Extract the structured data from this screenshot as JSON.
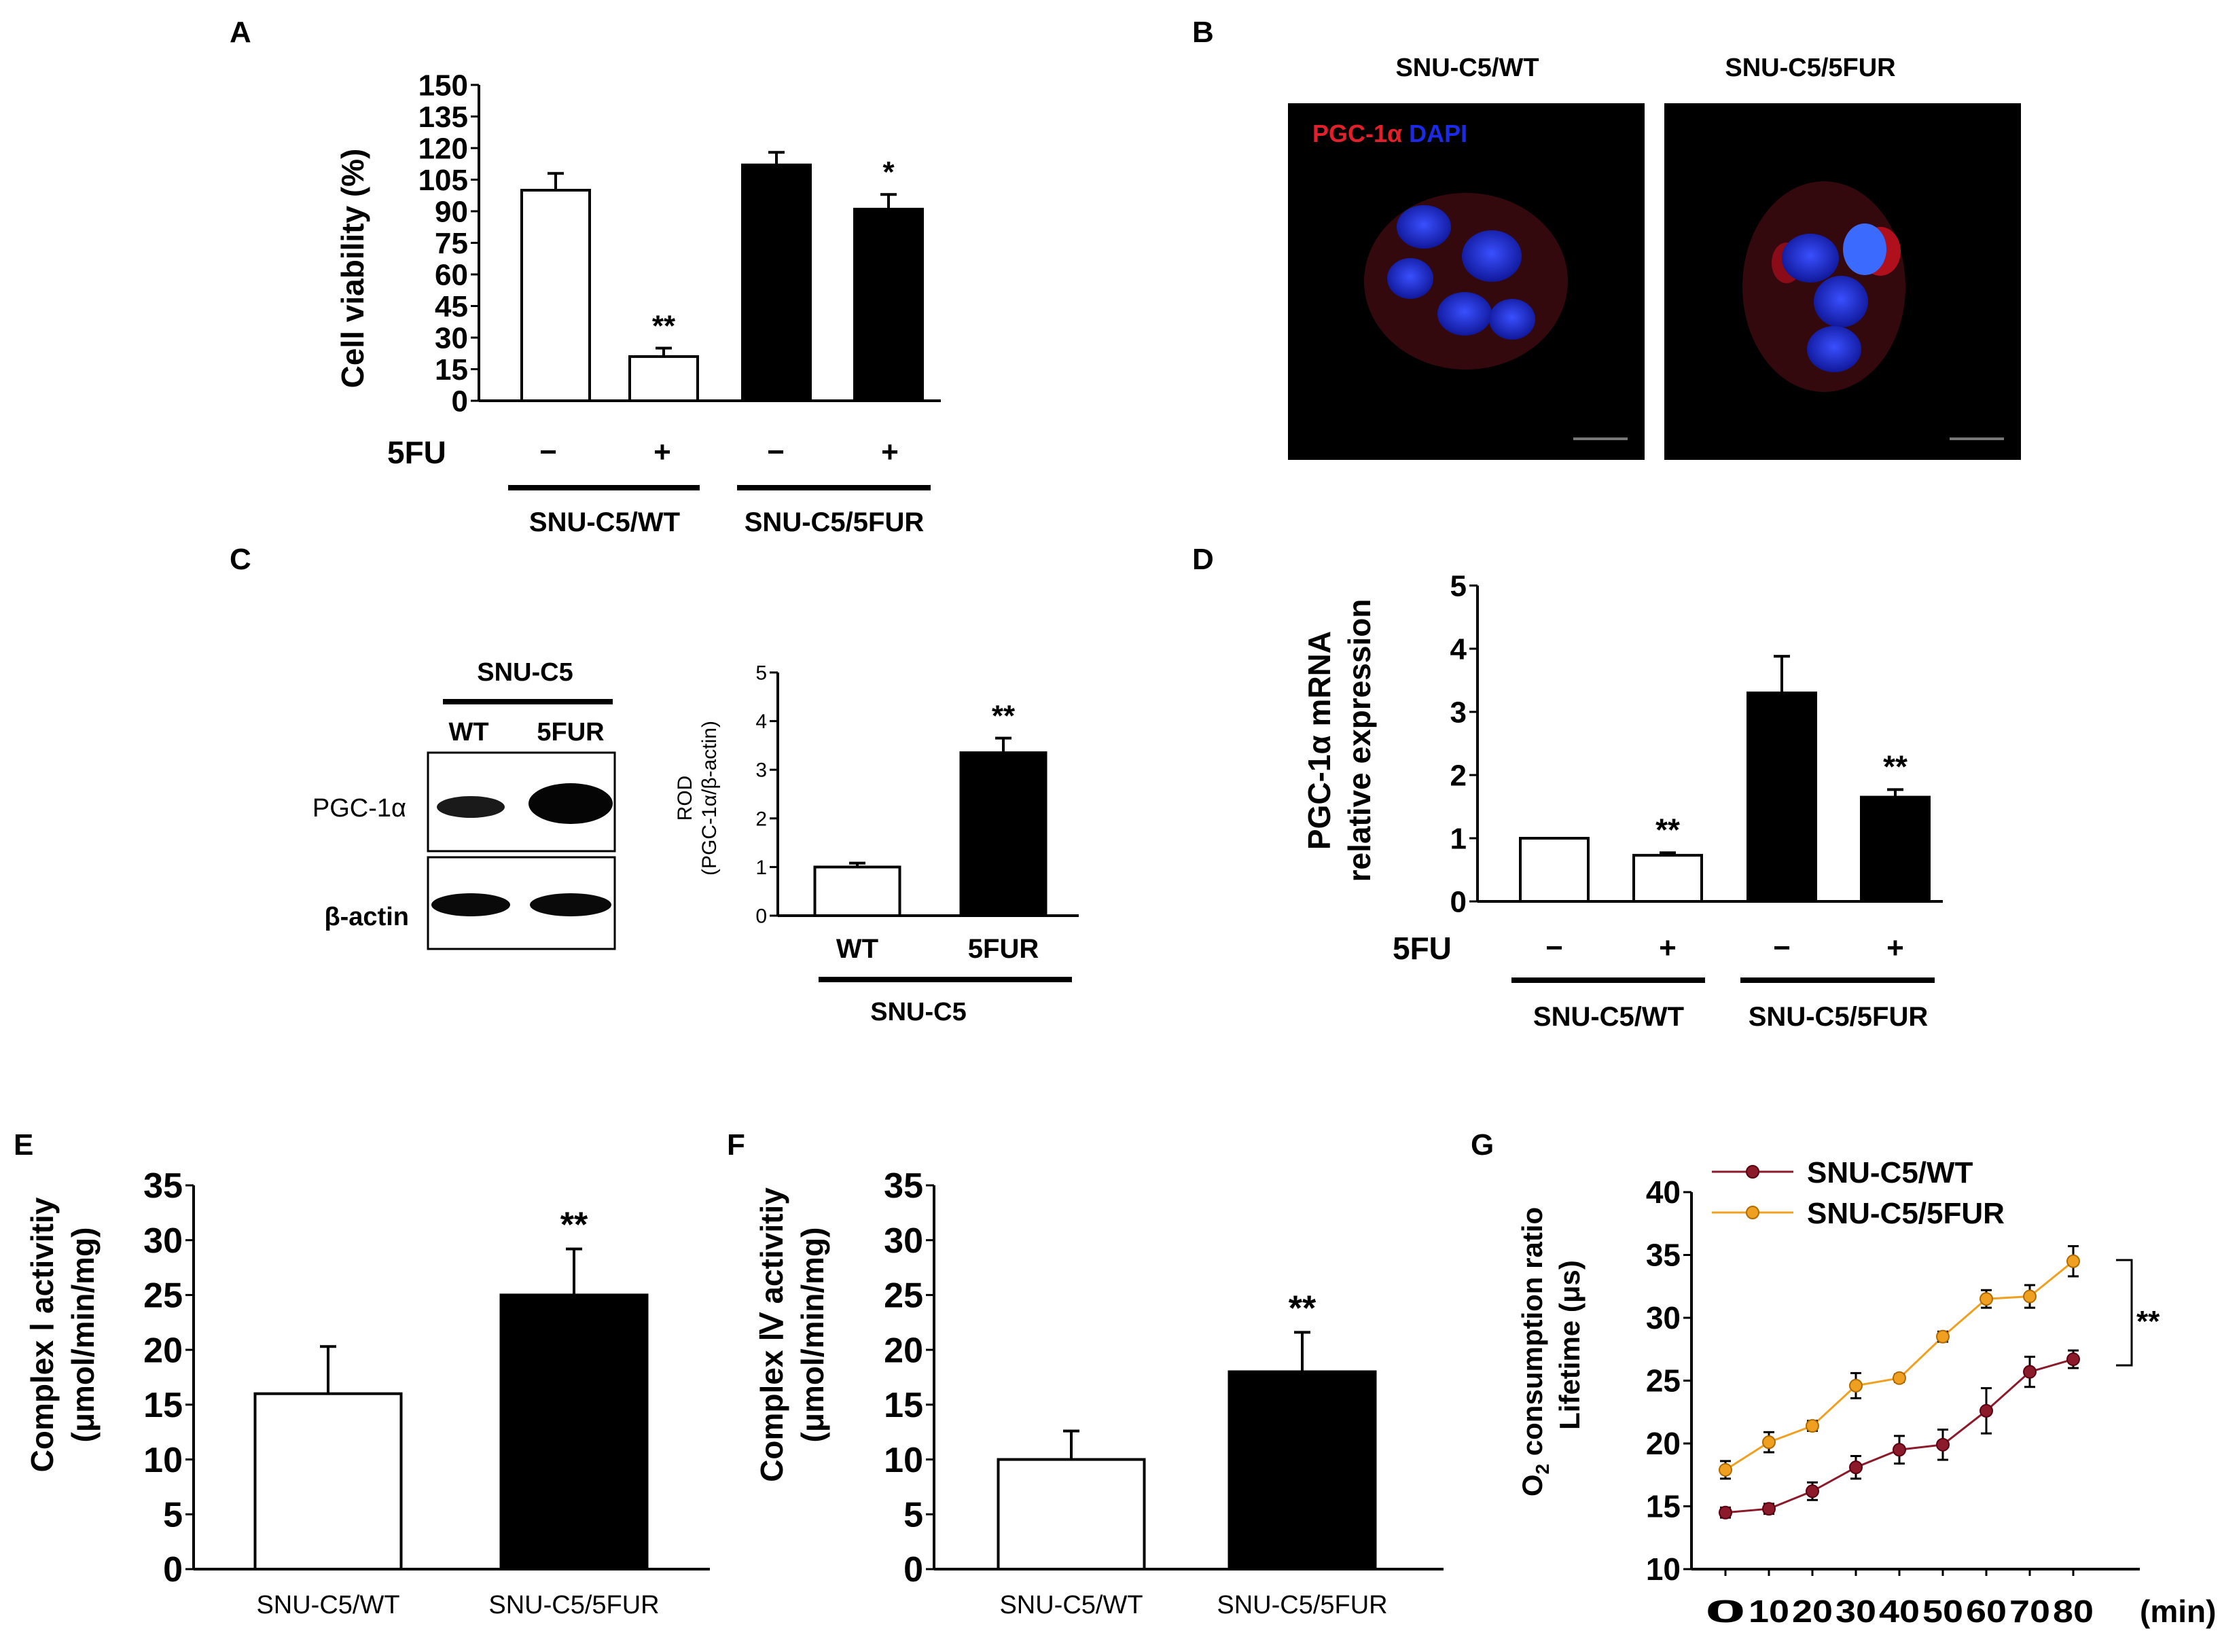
{
  "colors": {
    "wt_line": "#8b1a2b",
    "fur_line": "#f0a020",
    "bar_open": "#ffffff",
    "bar_filled": "#000000",
    "pgc_stain": "#e0202a",
    "dapi_stain": "#1a2ae6"
  },
  "panelA": {
    "letter": "A",
    "ylabel": "Cell viability (%)",
    "treat_label": "5FU",
    "treat_signs": [
      "−",
      "+",
      "−",
      "+"
    ],
    "groups": [
      "SNU-C5/WT",
      "SNU-C5/5FUR"
    ]
  },
  "panelB": {
    "letter": "B",
    "titles": [
      "SNU-C5/WT",
      "SNU-C5/5FUR"
    ],
    "legend_pgc": "PGC-1α",
    "legend_dapi": "DAPI"
  },
  "panelC": {
    "letter": "C",
    "blot_title": "SNU-C5",
    "lanes": [
      "WT",
      "5FUR"
    ],
    "rows": [
      "PGC-1α",
      "β-actin"
    ],
    "ylabel1": "ROD",
    "ylabel2": "(PGC-1α/β-actin)",
    "group": "SNU-C5"
  },
  "panelD": {
    "letter": "D",
    "ylabel1": "PGC-1α mRNA",
    "ylabel2": "relative expression",
    "treat_label": "5FU",
    "treat_signs": [
      "−",
      "+",
      "−",
      "+"
    ],
    "groups": [
      "SNU-C5/WT",
      "SNU-C5/5FUR"
    ]
  },
  "panelE": {
    "letter": "E",
    "ylabel1": "Complex Ⅰ activitiy",
    "ylabel2": "(μmol/min/mg)"
  },
  "panelF": {
    "letter": "F",
    "ylabel1": "Complex Ⅳ activitiy",
    "ylabel2": "(μmol/min/mg)"
  },
  "panelG": {
    "letter": "G",
    "ylabel1": "O",
    "ylabel1_sub": "2",
    "ylabel1_rest": " consumption ratio",
    "ylabel2": "Lifetime (μs)",
    "xunit": "(min)",
    "sig_label": "**"
  },
  "chart_data": [
    {
      "id": "A",
      "type": "bar",
      "categories": [
        "SNU-C5/WT −",
        "SNU-C5/WT +",
        "SNU-C5/5FUR −",
        "SNU-C5/5FUR +"
      ],
      "values": [
        100,
        21,
        112,
        91
      ],
      "errors": [
        8,
        4,
        6,
        7
      ],
      "fills": [
        "open",
        "open",
        "filled",
        "filled"
      ],
      "sig": [
        "",
        "**",
        "",
        "*"
      ],
      "ylim": [
        0,
        150
      ],
      "yticks": [
        0,
        15,
        30,
        45,
        60,
        75,
        90,
        105,
        120,
        135,
        150
      ],
      "ylabel": "Cell viability (%)"
    },
    {
      "id": "C",
      "type": "bar",
      "categories": [
        "WT",
        "5FUR"
      ],
      "values": [
        1.0,
        3.35
      ],
      "errors": [
        0.08,
        0.3
      ],
      "fills": [
        "open",
        "filled"
      ],
      "sig": [
        "",
        "**"
      ],
      "ylim": [
        0,
        5
      ],
      "yticks": [
        0,
        1,
        2,
        3,
        4,
        5
      ],
      "ylabel": "ROD (PGC-1α/β-actin)"
    },
    {
      "id": "D",
      "type": "bar",
      "categories": [
        "SNU-C5/WT −",
        "SNU-C5/WT +",
        "SNU-C5/5FUR −",
        "SNU-C5/5FUR +"
      ],
      "values": [
        1.0,
        0.73,
        3.3,
        1.65
      ],
      "errors": [
        0,
        0.04,
        0.58,
        0.12
      ],
      "fills": [
        "open",
        "open",
        "filled",
        "filled"
      ],
      "sig": [
        "",
        "**",
        "",
        "**"
      ],
      "ylim": [
        0,
        5
      ],
      "yticks": [
        0,
        1,
        2,
        3,
        4,
        5
      ],
      "ylabel": "PGC-1α mRNA relative expression"
    },
    {
      "id": "E",
      "type": "bar",
      "categories": [
        "SNU-C5/WT",
        "SNU-C5/5FUR"
      ],
      "values": [
        16,
        25
      ],
      "errors": [
        4.3,
        4.2
      ],
      "fills": [
        "open",
        "filled"
      ],
      "sig": [
        "",
        "**"
      ],
      "ylim": [
        0,
        35
      ],
      "yticks": [
        0,
        5,
        10,
        15,
        20,
        25,
        30,
        35
      ],
      "ylabel": "Complex Ⅰ activitiy (μmol/min/mg)"
    },
    {
      "id": "F",
      "type": "bar",
      "categories": [
        "SNU-C5/WT",
        "SNU-C5/5FUR"
      ],
      "values": [
        10,
        18
      ],
      "errors": [
        2.6,
        3.6
      ],
      "fills": [
        "open",
        "filled"
      ],
      "sig": [
        "",
        "**"
      ],
      "ylim": [
        0,
        35
      ],
      "yticks": [
        0,
        5,
        10,
        15,
        20,
        25,
        30,
        35
      ],
      "ylabel": "Complex Ⅳ activitiy (μmol/min/mg)"
    },
    {
      "id": "G",
      "type": "line",
      "x": [
        0,
        10,
        20,
        30,
        40,
        50,
        60,
        70,
        80
      ],
      "series": [
        {
          "name": "SNU-C5/WT",
          "values": [
            14.5,
            14.8,
            16.2,
            18.1,
            19.5,
            19.9,
            22.6,
            25.7,
            26.7
          ],
          "errors": [
            0.4,
            0.4,
            0.7,
            0.9,
            1.1,
            1.2,
            1.8,
            1.2,
            0.7
          ]
        },
        {
          "name": "SNU-C5/5FUR",
          "values": [
            17.9,
            20.1,
            21.4,
            24.6,
            25.2,
            28.5,
            31.5,
            31.7,
            34.5
          ],
          "errors": [
            0.7,
            0.8,
            0.4,
            1.0,
            0.3,
            0.4,
            0.7,
            0.9,
            1.2
          ]
        }
      ],
      "ylim": [
        10,
        40
      ],
      "yticks": [
        10,
        15,
        20,
        25,
        30,
        35,
        40
      ],
      "xlabel": "(min)",
      "ylabel": "O2 consumption ratio Lifetime (μs)"
    }
  ]
}
